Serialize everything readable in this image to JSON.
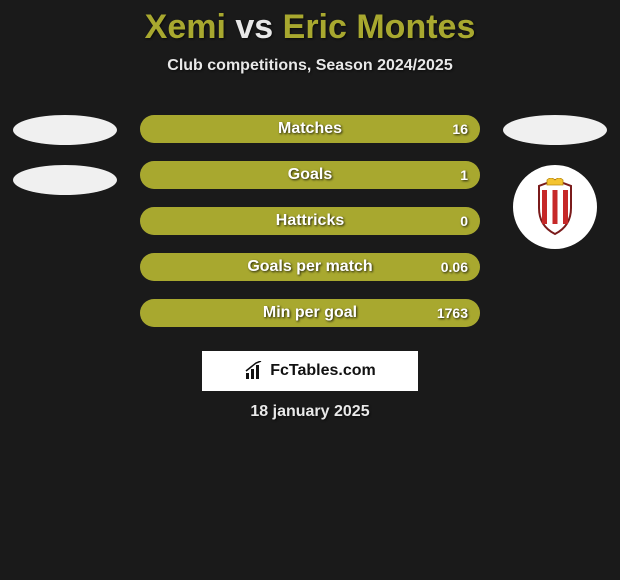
{
  "title": {
    "player1": "Xemi",
    "vs": "vs",
    "player2": "Eric Montes"
  },
  "subtitle": "Club competitions, Season 2024/2025",
  "colors": {
    "background": "#1a1a1a",
    "accent": "#a8a82f",
    "text_light": "#e8e8e8",
    "bar_bg": "#333333",
    "ellipse": "#f0f0f0",
    "badge_bg": "#ffffff"
  },
  "bars": {
    "color_left_full": "#a8a82f",
    "color_right_shade": "#8b8b26",
    "items": [
      {
        "label": "Matches",
        "left_val": "",
        "right_val": "16",
        "left_pct": 100,
        "right_pct": 0
      },
      {
        "label": "Goals",
        "left_val": "",
        "right_val": "1",
        "left_pct": 100,
        "right_pct": 0
      },
      {
        "label": "Hattricks",
        "left_val": "",
        "right_val": "0",
        "left_pct": 100,
        "right_pct": 0
      },
      {
        "label": "Goals per match",
        "left_val": "",
        "right_val": "0.06",
        "left_pct": 100,
        "right_pct": 0
      },
      {
        "label": "Min per goal",
        "left_val": "",
        "right_val": "1763",
        "left_pct": 100,
        "right_pct": 0
      }
    ]
  },
  "left_side": {
    "ellipses": 2
  },
  "right_side": {
    "ellipses": 1,
    "badge": true
  },
  "source": {
    "text": "FcTables.com"
  },
  "date": "18 january 2025"
}
